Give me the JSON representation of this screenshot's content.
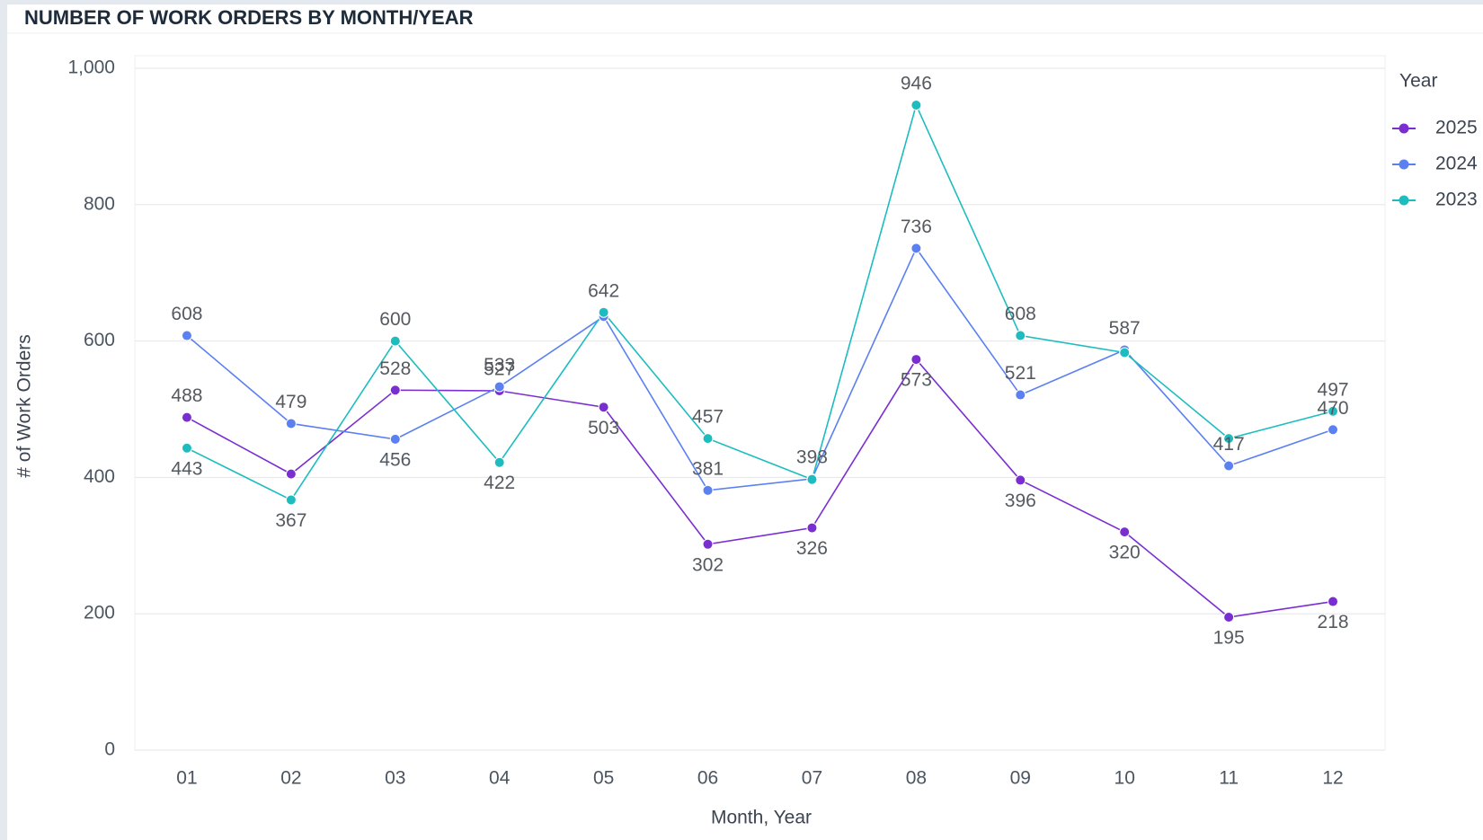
{
  "chart_data": {
    "type": "line",
    "title": "NUMBER OF WORK ORDERS BY MONTH/YEAR",
    "x_label": "Month, Year",
    "y_label": "# of Work Orders",
    "legend_title": "Year",
    "legend": "right",
    "grid": true,
    "categories": [
      "01",
      "02",
      "03",
      "04",
      "05",
      "06",
      "07",
      "08",
      "09",
      "10",
      "11",
      "12"
    ],
    "ylim": [
      0,
      1000
    ],
    "yticks": [
      0,
      200,
      400,
      600,
      800,
      {
        "value": 1000,
        "label": "1,000"
      }
    ],
    "series": [
      {
        "name": "2025",
        "color": "#7a2ed1",
        "values": [
          488,
          405,
          528,
          527,
          503,
          302,
          326,
          573,
          396,
          320,
          195,
          218
        ],
        "value_labels": [
          488,
          null,
          528,
          527,
          503,
          302,
          326,
          573,
          396,
          320,
          195,
          218
        ]
      },
      {
        "name": "2024",
        "color": "#5b80f2",
        "values": [
          608,
          479,
          456,
          533,
          636,
          381,
          398,
          736,
          521,
          587,
          417,
          470
        ],
        "value_labels": [
          608,
          479,
          456,
          533,
          null,
          381,
          398,
          736,
          521,
          587,
          417,
          470
        ]
      },
      {
        "name": "2023",
        "color": "#1dbdbf",
        "values": [
          443,
          367,
          600,
          422,
          642,
          457,
          397,
          946,
          608,
          583,
          457,
          497
        ],
        "value_labels": [
          443,
          367,
          600,
          422,
          642,
          457,
          null,
          946,
          608,
          null,
          null,
          497
        ]
      }
    ]
  }
}
